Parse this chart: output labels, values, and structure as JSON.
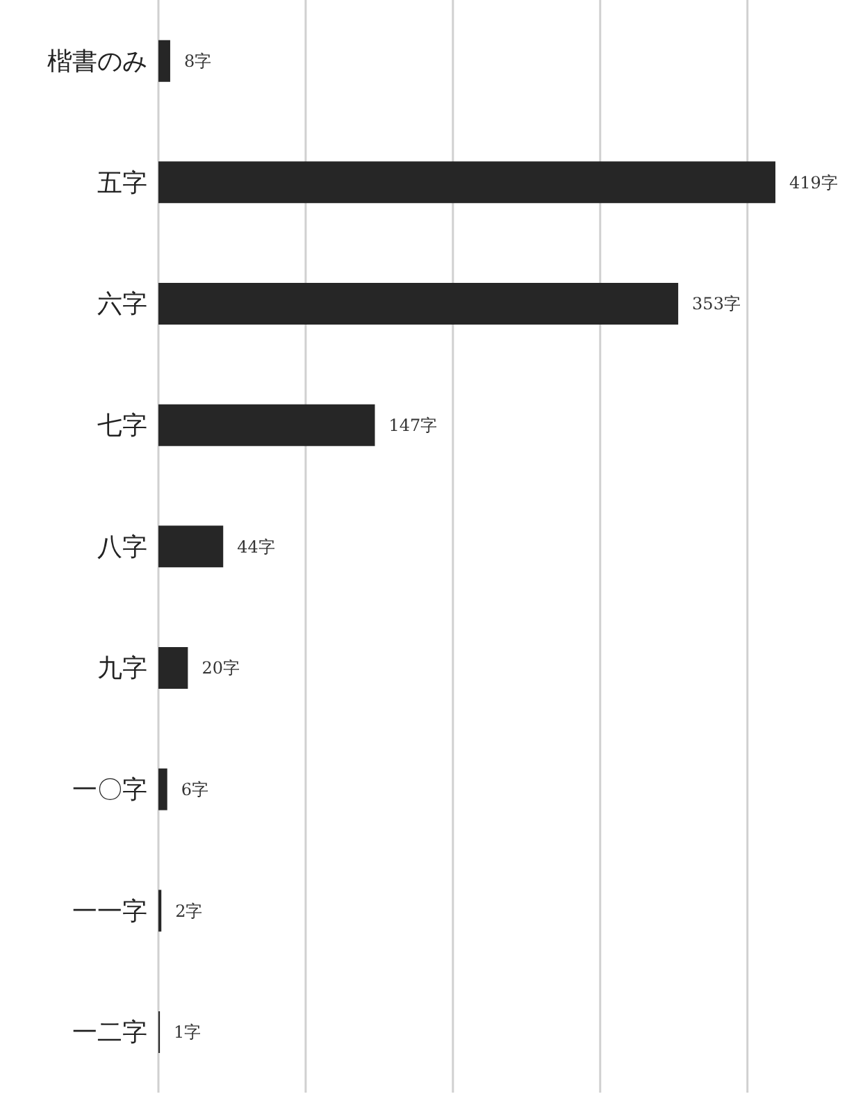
{
  "chart_data": {
    "type": "bar",
    "orientation": "horizontal",
    "categories": [
      "楷書のみ",
      "五字",
      "六字",
      "七字",
      "八字",
      "九字",
      "一〇字",
      "一一字",
      "一二字"
    ],
    "values": [
      8,
      419,
      353,
      147,
      44,
      20,
      6,
      2,
      1
    ],
    "value_labels": [
      "8字",
      "419字",
      "353字",
      "147字",
      "44字",
      "20字",
      "6字",
      "2字",
      "1字"
    ],
    "color": "#262626",
    "xticks": [
      {
        "value": 0,
        "label": null
      },
      {
        "value": 100,
        "label": null
      },
      {
        "value": 200,
        "label": null
      },
      {
        "value": 300,
        "label": null
      },
      {
        "value": 400,
        "label": null
      }
    ],
    "tick_labels": "y",
    "grid": "x",
    "legend": false
  }
}
